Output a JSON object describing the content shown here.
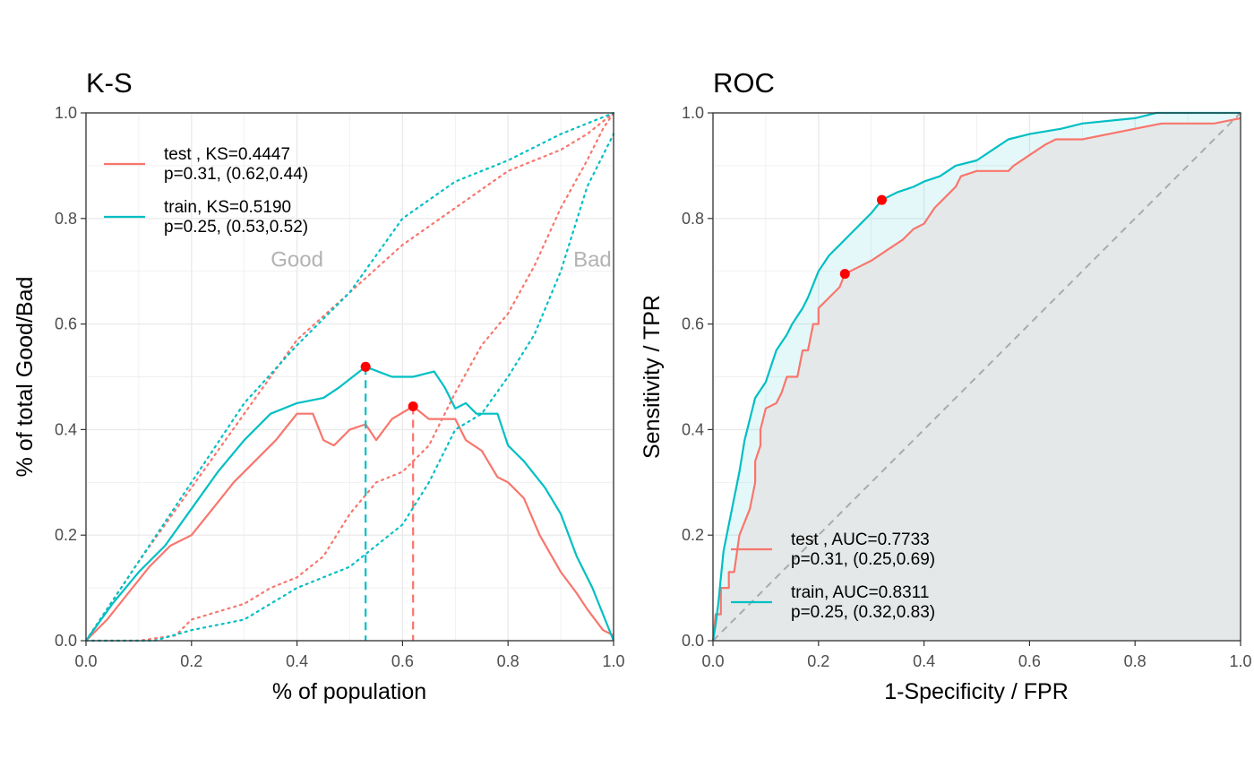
{
  "colors": {
    "test": "#F8766D",
    "train": "#00BFC4",
    "point": "#FF0000",
    "grid": "#EBEBEB",
    "panel_border": "#333333",
    "diagonal": "#AAAAAA",
    "area_fill": "#E5E8E8",
    "region_text": "#B3B3B3"
  },
  "chart_data": [
    {
      "type": "line",
      "title": "K-S",
      "xlabel": "% of population",
      "ylabel": "% of total Good/Bad",
      "xlim": [
        0,
        1
      ],
      "ylim": [
        0,
        1
      ],
      "xticks": [
        "0.0",
        "0.2",
        "0.4",
        "0.6",
        "0.8",
        "1.0"
      ],
      "yticks": [
        "0.0",
        "0.2",
        "0.4",
        "0.6",
        "0.8",
        "1.0"
      ],
      "grid": true,
      "legend_position": "top-left",
      "annotations": [
        {
          "text": "Good",
          "x": 0.4,
          "y": 0.72
        },
        {
          "text": "Bad",
          "x": 0.96,
          "y": 0.72
        }
      ],
      "series": [
        {
          "name": "test",
          "legend_lines": [
            "test , KS=0.4447",
            "p=0.31, (0.62,0.44)"
          ],
          "ks": {
            "x": 0.62,
            "y": 0.444
          },
          "ks_diff": [
            [
              0,
              0
            ],
            [
              0.04,
              0.04
            ],
            [
              0.08,
              0.09
            ],
            [
              0.12,
              0.14
            ],
            [
              0.16,
              0.18
            ],
            [
              0.2,
              0.2
            ],
            [
              0.24,
              0.25
            ],
            [
              0.28,
              0.3
            ],
            [
              0.32,
              0.34
            ],
            [
              0.36,
              0.38
            ],
            [
              0.4,
              0.43
            ],
            [
              0.43,
              0.43
            ],
            [
              0.45,
              0.38
            ],
            [
              0.47,
              0.37
            ],
            [
              0.5,
              0.4
            ],
            [
              0.53,
              0.41
            ],
            [
              0.55,
              0.38
            ],
            [
              0.58,
              0.42
            ],
            [
              0.62,
              0.444
            ],
            [
              0.65,
              0.42
            ],
            [
              0.7,
              0.42
            ],
            [
              0.72,
              0.38
            ],
            [
              0.75,
              0.36
            ],
            [
              0.78,
              0.31
            ],
            [
              0.8,
              0.3
            ],
            [
              0.83,
              0.27
            ],
            [
              0.86,
              0.2
            ],
            [
              0.9,
              0.13
            ],
            [
              0.93,
              0.09
            ],
            [
              0.95,
              0.06
            ],
            [
              0.98,
              0.02
            ],
            [
              1,
              0.01
            ]
          ],
          "cum_good": [
            [
              0,
              0
            ],
            [
              0.1,
              0.15
            ],
            [
              0.2,
              0.29
            ],
            [
              0.3,
              0.43
            ],
            [
              0.4,
              0.57
            ],
            [
              0.5,
              0.66
            ],
            [
              0.6,
              0.75
            ],
            [
              0.7,
              0.82
            ],
            [
              0.8,
              0.89
            ],
            [
              0.9,
              0.93
            ],
            [
              0.95,
              0.96
            ],
            [
              1,
              1
            ]
          ],
          "cum_bad": [
            [
              0,
              0
            ],
            [
              0.1,
              0
            ],
            [
              0.17,
              0.01
            ],
            [
              0.2,
              0.04
            ],
            [
              0.3,
              0.07
            ],
            [
              0.35,
              0.1
            ],
            [
              0.4,
              0.12
            ],
            [
              0.45,
              0.16
            ],
            [
              0.5,
              0.24
            ],
            [
              0.55,
              0.3
            ],
            [
              0.6,
              0.32
            ],
            [
              0.65,
              0.37
            ],
            [
              0.7,
              0.47
            ],
            [
              0.75,
              0.56
            ],
            [
              0.8,
              0.62
            ],
            [
              0.85,
              0.71
            ],
            [
              0.9,
              0.82
            ],
            [
              0.95,
              0.91
            ],
            [
              0.98,
              0.97
            ],
            [
              1,
              1
            ]
          ]
        },
        {
          "name": "train",
          "legend_lines": [
            "train, KS=0.5190",
            "p=0.25, (0.53,0.52)"
          ],
          "ks": {
            "x": 0.53,
            "y": 0.519
          },
          "ks_diff": [
            [
              0,
              0
            ],
            [
              0.05,
              0.07
            ],
            [
              0.1,
              0.13
            ],
            [
              0.15,
              0.18
            ],
            [
              0.2,
              0.25
            ],
            [
              0.25,
              0.32
            ],
            [
              0.3,
              0.38
            ],
            [
              0.35,
              0.43
            ],
            [
              0.4,
              0.45
            ],
            [
              0.45,
              0.46
            ],
            [
              0.48,
              0.48
            ],
            [
              0.53,
              0.519
            ],
            [
              0.58,
              0.5
            ],
            [
              0.62,
              0.5
            ],
            [
              0.66,
              0.51
            ],
            [
              0.68,
              0.48
            ],
            [
              0.7,
              0.44
            ],
            [
              0.72,
              0.45
            ],
            [
              0.74,
              0.43
            ],
            [
              0.78,
              0.43
            ],
            [
              0.8,
              0.37
            ],
            [
              0.83,
              0.34
            ],
            [
              0.87,
              0.29
            ],
            [
              0.9,
              0.24
            ],
            [
              0.93,
              0.16
            ],
            [
              0.96,
              0.1
            ],
            [
              0.98,
              0.05
            ],
            [
              1,
              0
            ]
          ],
          "cum_good": [
            [
              0,
              0
            ],
            [
              0.1,
              0.15
            ],
            [
              0.2,
              0.3
            ],
            [
              0.3,
              0.45
            ],
            [
              0.4,
              0.56
            ],
            [
              0.5,
              0.66
            ],
            [
              0.6,
              0.8
            ],
            [
              0.7,
              0.87
            ],
            [
              0.8,
              0.91
            ],
            [
              0.9,
              0.96
            ],
            [
              1,
              1
            ]
          ],
          "cum_bad": [
            [
              0,
              0
            ],
            [
              0.13,
              0
            ],
            [
              0.2,
              0.02
            ],
            [
              0.3,
              0.04
            ],
            [
              0.4,
              0.1
            ],
            [
              0.5,
              0.14
            ],
            [
              0.6,
              0.22
            ],
            [
              0.65,
              0.3
            ],
            [
              0.7,
              0.4
            ],
            [
              0.75,
              0.43
            ],
            [
              0.8,
              0.5
            ],
            [
              0.85,
              0.58
            ],
            [
              0.9,
              0.7
            ],
            [
              0.95,
              0.86
            ],
            [
              1,
              0.96
            ]
          ]
        }
      ]
    },
    {
      "type": "line",
      "title": "ROC",
      "xlabel": "1-Specificity / FPR",
      "ylabel": "Sensitivity / TPR",
      "xlim": [
        0,
        1
      ],
      "ylim": [
        0,
        1
      ],
      "xticks": [
        "0.0",
        "0.2",
        "0.4",
        "0.6",
        "0.8",
        "1.0"
      ],
      "yticks": [
        "0.0",
        "0.2",
        "0.4",
        "0.6",
        "0.8",
        "1.0"
      ],
      "grid": true,
      "legend_position": "bottom-right",
      "series": [
        {
          "name": "test",
          "legend_lines": [
            "test , AUC=0.7733",
            "p=0.31, (0.25,0.69)"
          ],
          "point": {
            "x": 0.25,
            "y": 0.695
          },
          "points": [
            [
              0,
              0
            ],
            [
              0.005,
              0.05
            ],
            [
              0.015,
              0.05
            ],
            [
              0.015,
              0.1
            ],
            [
              0.03,
              0.1
            ],
            [
              0.03,
              0.13
            ],
            [
              0.04,
              0.13
            ],
            [
              0.05,
              0.2
            ],
            [
              0.07,
              0.25
            ],
            [
              0.08,
              0.3
            ],
            [
              0.08,
              0.34
            ],
            [
              0.09,
              0.37
            ],
            [
              0.09,
              0.4
            ],
            [
              0.1,
              0.44
            ],
            [
              0.12,
              0.45
            ],
            [
              0.13,
              0.47
            ],
            [
              0.14,
              0.5
            ],
            [
              0.16,
              0.5
            ],
            [
              0.17,
              0.55
            ],
            [
              0.18,
              0.55
            ],
            [
              0.19,
              0.6
            ],
            [
              0.2,
              0.6
            ],
            [
              0.2,
              0.63
            ],
            [
              0.22,
              0.65
            ],
            [
              0.24,
              0.67
            ],
            [
              0.25,
              0.695
            ],
            [
              0.28,
              0.71
            ],
            [
              0.3,
              0.72
            ],
            [
              0.33,
              0.74
            ],
            [
              0.36,
              0.76
            ],
            [
              0.38,
              0.78
            ],
            [
              0.4,
              0.79
            ],
            [
              0.42,
              0.82
            ],
            [
              0.44,
              0.84
            ],
            [
              0.46,
              0.86
            ],
            [
              0.47,
              0.88
            ],
            [
              0.5,
              0.89
            ],
            [
              0.56,
              0.89
            ],
            [
              0.57,
              0.9
            ],
            [
              0.6,
              0.92
            ],
            [
              0.63,
              0.94
            ],
            [
              0.65,
              0.95
            ],
            [
              0.7,
              0.95
            ],
            [
              0.75,
              0.96
            ],
            [
              0.8,
              0.97
            ],
            [
              0.85,
              0.98
            ],
            [
              0.95,
              0.98
            ],
            [
              1,
              0.99
            ]
          ]
        },
        {
          "name": "train",
          "legend_lines": [
            "train, AUC=0.8311",
            "p=0.25, (0.32,0.83)"
          ],
          "point": {
            "x": 0.32,
            "y": 0.835
          },
          "points": [
            [
              0,
              0
            ],
            [
              0.005,
              0.03
            ],
            [
              0.01,
              0.07
            ],
            [
              0.015,
              0.12
            ],
            [
              0.02,
              0.17
            ],
            [
              0.03,
              0.22
            ],
            [
              0.04,
              0.27
            ],
            [
              0.05,
              0.32
            ],
            [
              0.06,
              0.38
            ],
            [
              0.07,
              0.42
            ],
            [
              0.08,
              0.46
            ],
            [
              0.1,
              0.49
            ],
            [
              0.11,
              0.52
            ],
            [
              0.12,
              0.55
            ],
            [
              0.14,
              0.58
            ],
            [
              0.15,
              0.6
            ],
            [
              0.17,
              0.63
            ],
            [
              0.18,
              0.65
            ],
            [
              0.2,
              0.7
            ],
            [
              0.22,
              0.73
            ],
            [
              0.24,
              0.75
            ],
            [
              0.26,
              0.77
            ],
            [
              0.28,
              0.79
            ],
            [
              0.3,
              0.81
            ],
            [
              0.32,
              0.835
            ],
            [
              0.35,
              0.85
            ],
            [
              0.38,
              0.86
            ],
            [
              0.4,
              0.87
            ],
            [
              0.43,
              0.88
            ],
            [
              0.46,
              0.9
            ],
            [
              0.5,
              0.91
            ],
            [
              0.53,
              0.93
            ],
            [
              0.56,
              0.95
            ],
            [
              0.6,
              0.96
            ],
            [
              0.66,
              0.97
            ],
            [
              0.7,
              0.98
            ],
            [
              0.8,
              0.99
            ],
            [
              0.84,
              1
            ],
            [
              1,
              1
            ]
          ]
        }
      ]
    }
  ]
}
